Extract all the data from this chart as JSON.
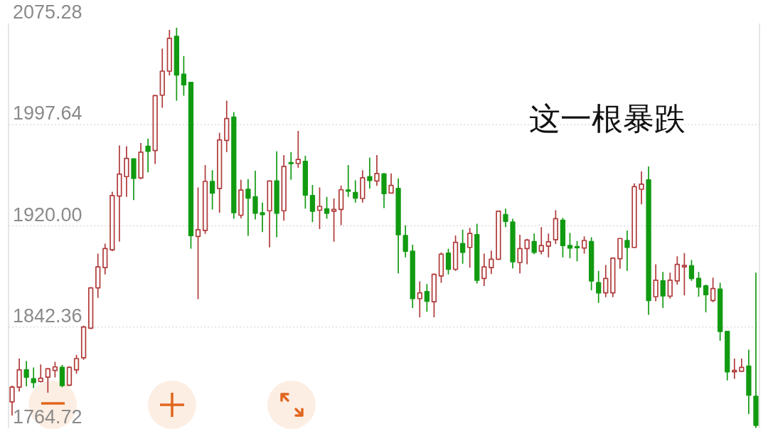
{
  "chart_data": {
    "type": "candlestick",
    "categories": [
      null,
      null,
      null,
      null,
      null,
      null,
      null,
      null,
      null,
      null,
      null,
      null,
      null,
      null,
      null,
      null,
      null,
      null,
      null,
      null,
      null,
      null,
      null,
      null,
      null,
      null,
      null,
      null,
      null,
      null,
      null,
      null,
      null,
      null,
      null,
      null,
      null,
      null,
      null,
      null,
      null,
      null,
      null,
      null,
      null,
      null,
      null,
      null,
      null,
      null,
      null,
      null,
      null,
      null,
      null,
      null,
      null,
      null,
      null,
      null,
      null,
      null,
      null,
      null,
      null,
      null,
      null,
      null,
      null,
      null,
      null,
      null,
      null,
      null,
      null,
      null,
      null,
      null,
      null,
      null,
      null,
      null,
      null,
      null,
      null,
      null,
      null,
      null,
      null,
      null,
      null,
      null,
      null,
      null,
      null,
      null,
      null,
      null,
      null,
      null,
      null,
      null,
      null,
      null,
      null
    ],
    "ohlc": [
      [
        1785.0,
        1797.5,
        1774.6,
        1796.3
      ],
      [
        1796.3,
        1818.2,
        1793.0,
        1809.5
      ],
      [
        1809.5,
        1816.3,
        1796.9,
        1804.0
      ],
      [
        1802.7,
        1811.4,
        1795.5,
        1799.8
      ],
      [
        1800.6,
        1813.7,
        1799.8,
        1803.1
      ],
      [
        1804.0,
        1811.0,
        1792.0,
        1810.4
      ],
      [
        1809.1,
        1815.7,
        1803.7,
        1811.8
      ],
      [
        1811.4,
        1813.3,
        1796.3,
        1797.5
      ],
      [
        1797.8,
        1812.4,
        1796.9,
        1811.4
      ],
      [
        1809.5,
        1821.1,
        1806.6,
        1818.2
      ],
      [
        1818.8,
        1843.4,
        1817.2,
        1842.4
      ],
      [
        1841.5,
        1873.1,
        1840.9,
        1872.5
      ],
      [
        1872.5,
        1898.7,
        1864.8,
        1888.6
      ],
      [
        1888.0,
        1906.4,
        1882.8,
        1902.6
      ],
      [
        1901.6,
        1946.2,
        1900.6,
        1943.3
      ],
      [
        1942.9,
        1981.7,
        1908.0,
        1959.8
      ],
      [
        1957.8,
        1981.1,
        1942.3,
        1971.8
      ],
      [
        1971.4,
        1971.8,
        1939.8,
        1956.5
      ],
      [
        1956.8,
        1983.6,
        1955.9,
        1976.6
      ],
      [
        1981.1,
        1986.9,
        1961.1,
        1977.2
      ],
      [
        1977.8,
        2020.5,
        1967.5,
        2019.9
      ],
      [
        2020.3,
        2056.1,
        2010.6,
        2038.7
      ],
      [
        2038.7,
        2070.3,
        2035.4,
        2063.9
      ],
      [
        2065.4,
        2072.0,
        2016.0,
        2035.8
      ],
      [
        2036.4,
        2050.3,
        2019.9,
        2028.2
      ],
      [
        2030.1,
        2030.5,
        1902.6,
        1912.6
      ],
      [
        1911.9,
        1949.5,
        1863.8,
        1917.1
      ],
      [
        1916.5,
        1966.6,
        1913.8,
        1954.1
      ],
      [
        1954.1,
        1962.7,
        1932.6,
        1945.2
      ],
      [
        1948.7,
        1991.4,
        1930.1,
        1986.0
      ],
      [
        1985.6,
        2016.0,
        1976.6,
        2002.4
      ],
      [
        2003.4,
        2007.3,
        1925.5,
        1930.1
      ],
      [
        1928.2,
        1955.3,
        1925.8,
        1947.5
      ],
      [
        1948.1,
        1955.9,
        1912.3,
        1941.3
      ],
      [
        1942.3,
        1962.3,
        1924.9,
        1929.7
      ],
      [
        1930.1,
        1937.9,
        1915.2,
        1928.7
      ],
      [
        1931.6,
        1954.9,
        1903.5,
        1954.5
      ],
      [
        1954.5,
        1977.2,
        1911.3,
        1929.7
      ],
      [
        1931.6,
        1974.3,
        1923.9,
        1965.6
      ],
      [
        1968.5,
        1976.6,
        1955.3,
        1967.9
      ],
      [
        1967.9,
        1992.8,
        1964.6,
        1971.0
      ],
      [
        1969.5,
        1973.7,
        1933.2,
        1943.7
      ],
      [
        1943.3,
        1951.4,
        1922.9,
        1931.3
      ],
      [
        1932.0,
        1949.5,
        1917.5,
        1935.0
      ],
      [
        1933.0,
        1942.3,
        1925.5,
        1929.7
      ],
      [
        1931.3,
        1941.0,
        1907.8,
        1932.6
      ],
      [
        1932.6,
        1951.0,
        1920.6,
        1947.7
      ],
      [
        1947.5,
        1966.6,
        1942.3,
        1946.6
      ],
      [
        1945.6,
        1954.9,
        1937.9,
        1941.3
      ],
      [
        1941.0,
        1962.7,
        1937.9,
        1956.9
      ],
      [
        1957.8,
        1972.4,
        1948.7,
        1954.9
      ],
      [
        1954.4,
        1974.3,
        1950.7,
        1960.2
      ],
      [
        1959.8,
        1960.7,
        1933.6,
        1944.8
      ],
      [
        1945.2,
        1960.3,
        1944.8,
        1951.0
      ],
      [
        1948.7,
        1956.5,
        1883.6,
        1913.2
      ],
      [
        1912.6,
        1920.4,
        1895.8,
        1900.6
      ],
      [
        1900.6,
        1905.5,
        1857.0,
        1864.2
      ],
      [
        1864.2,
        1877.4,
        1849.8,
        1868.6
      ],
      [
        1869.6,
        1875.4,
        1854.1,
        1862.2
      ],
      [
        1861.8,
        1883.6,
        1849.8,
        1882.8
      ],
      [
        1881.6,
        1899.7,
        1876.4,
        1898.3
      ],
      [
        1899.1,
        1902.6,
        1882.8,
        1886.7
      ],
      [
        1886.7,
        1912.6,
        1885.5,
        1907.4
      ],
      [
        1906.4,
        1917.1,
        1890.9,
        1899.7
      ],
      [
        1903.5,
        1918.5,
        1888.0,
        1914.2
      ],
      [
        1913.2,
        1921.6,
        1875.8,
        1878.3
      ],
      [
        1879.7,
        1898.7,
        1873.9,
        1888.6
      ],
      [
        1888.0,
        1901.0,
        1883.2,
        1894.4
      ],
      [
        1894.4,
        1931.6,
        1893.8,
        1931.3
      ],
      [
        1928.7,
        1933.2,
        1919.0,
        1923.5
      ],
      [
        1922.9,
        1925.5,
        1887.4,
        1892.5
      ],
      [
        1891.9,
        1913.2,
        1883.6,
        1902.6
      ],
      [
        1902.6,
        1910.0,
        1890.5,
        1909.2
      ],
      [
        1908.0,
        1914.2,
        1898.3,
        1899.7
      ],
      [
        1900.6,
        1919.0,
        1898.1,
        1904.9
      ],
      [
        1904.5,
        1914.2,
        1895.8,
        1907.8
      ],
      [
        1909.4,
        1932.0,
        1906.1,
        1925.5
      ],
      [
        1924.3,
        1926.2,
        1895.8,
        1904.9
      ],
      [
        1904.9,
        1914.6,
        1895.2,
        1903.0
      ],
      [
        1904.1,
        1908.4,
        1892.9,
        1903.3
      ],
      [
        1903.0,
        1911.9,
        1898.7,
        1908.8
      ],
      [
        1908.0,
        1911.3,
        1870.6,
        1877.8
      ],
      [
        1876.4,
        1885.5,
        1860.9,
        1868.6
      ],
      [
        1868.6,
        1890.0,
        1865.3,
        1879.7
      ],
      [
        1868.6,
        1895.8,
        1865.3,
        1895.2
      ],
      [
        1894.8,
        1910.7,
        1887.1,
        1910.3
      ],
      [
        1908.8,
        1916.5,
        1885.5,
        1903.5
      ],
      [
        1903.5,
        1952.6,
        1902.9,
        1950.1
      ],
      [
        1948.1,
        1961.7,
        1936.5,
        1952.0
      ],
      [
        1955.3,
        1965.6,
        1851.8,
        1862.8
      ],
      [
        1865.7,
        1890.5,
        1862.2,
        1878.3
      ],
      [
        1877.9,
        1884.7,
        1857.0,
        1866.3
      ],
      [
        1866.1,
        1884.1,
        1864.2,
        1878.3
      ],
      [
        1877.8,
        1896.7,
        1875.0,
        1890.5
      ],
      [
        1888.6,
        1899.1,
        1866.7,
        1889.6
      ],
      [
        1889.4,
        1893.8,
        1877.8,
        1879.7
      ],
      [
        1879.7,
        1884.7,
        1865.7,
        1873.1
      ],
      [
        1873.9,
        1875.0,
        1853.7,
        1867.3
      ],
      [
        1862.8,
        1880.3,
        1861.4,
        1871.9
      ],
      [
        1871.5,
        1876.4,
        1831.8,
        1839.0
      ],
      [
        1839.0,
        1839.3,
        1801.4,
        1808.0
      ],
      [
        1808.0,
        1818.2,
        1802.7,
        1809.1
      ],
      [
        1808.5,
        1818.2,
        1808.0,
        1811.4
      ],
      [
        1812.4,
        1825.0,
        1775.6,
        1790.1
      ],
      [
        1789.2,
        1884.1,
        1765.0,
        1767.0
      ]
    ],
    "colors": [
      "#b03a3a",
      "#b03a3a",
      "#129b12",
      "#129b12",
      "#b03a3a",
      "#b03a3a",
      "#b03a3a",
      "#129b12",
      "#b03a3a",
      "#b03a3a",
      "#b03a3a",
      "#b03a3a",
      "#b03a3a",
      "#b03a3a",
      "#b03a3a",
      "#b03a3a",
      "#b03a3a",
      "#129b12",
      "#b03a3a",
      "#129b12",
      "#b03a3a",
      "#b03a3a",
      "#b03a3a",
      "#129b12",
      "#129b12",
      "#129b12",
      "#b03a3a",
      "#b03a3a",
      "#129b12",
      "#b03a3a",
      "#b03a3a",
      "#129b12",
      "#b03a3a",
      "#129b12",
      "#129b12",
      "#129b12",
      "#b03a3a",
      "#129b12",
      "#b03a3a",
      "#129b12",
      "#b03a3a",
      "#129b12",
      "#129b12",
      "#b03a3a",
      "#129b12",
      "#b03a3a",
      "#b03a3a",
      "#129b12",
      "#129b12",
      "#b03a3a",
      "#129b12",
      "#b03a3a",
      "#129b12",
      "#b03a3a",
      "#129b12",
      "#129b12",
      "#129b12",
      "#b03a3a",
      "#129b12",
      "#b03a3a",
      "#b03a3a",
      "#129b12",
      "#b03a3a",
      "#129b12",
      "#b03a3a",
      "#129b12",
      "#b03a3a",
      "#b03a3a",
      "#b03a3a",
      "#129b12",
      "#129b12",
      "#b03a3a",
      "#b03a3a",
      "#129b12",
      "#b03a3a",
      "#b03a3a",
      "#b03a3a",
      "#129b12",
      "#129b12",
      "#129b12",
      "#b03a3a",
      "#129b12",
      "#129b12",
      "#b03a3a",
      "#b03a3a",
      "#b03a3a",
      "#129b12",
      "#b03a3a",
      "#b03a3a",
      "#129b12",
      "#b03a3a",
      "#129b12",
      "#b03a3a",
      "#b03a3a",
      "#b03a3a",
      "#129b12",
      "#129b12",
      "#129b12",
      "#b03a3a",
      "#129b12",
      "#129b12",
      "#b03a3a",
      "#b03a3a",
      "#129b12",
      "#129b12"
    ],
    "ylim": [
      1764.72,
      2075.28
    ],
    "yticks": [
      2075.28,
      1997.64,
      {
        "value": 1920,
        "label": "1920.00"
      },
      1842.36,
      1764.72
    ],
    "grid": "y",
    "tick_labels": "y",
    "annotations": [
      "这一根暴跌"
    ]
  }
}
